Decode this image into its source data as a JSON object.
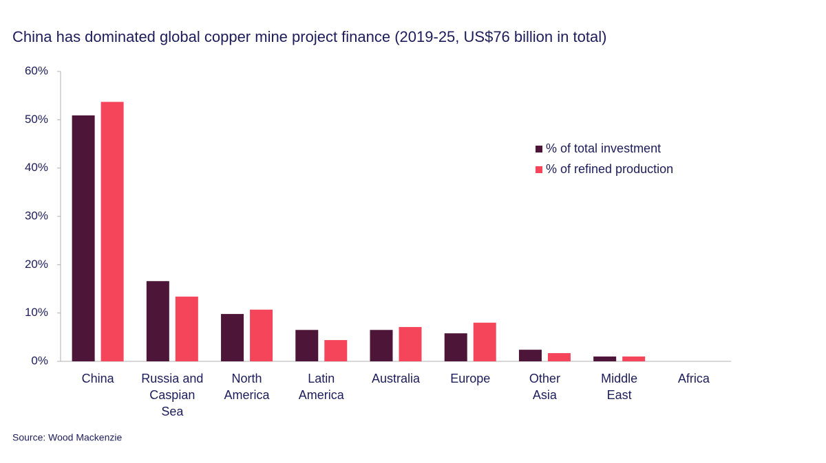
{
  "chart_data": {
    "type": "bar",
    "title": "China has dominated global copper mine project finance (2019-25, US$76 billion in total)",
    "source": "Source: Wood Mackenzie",
    "categories": [
      "China",
      "Russia and\nCaspian\nSea",
      "North\nAmerica",
      "Latin\nAmerica",
      "Australia",
      "Europe",
      "Other\nAsia",
      "Middle\nEast",
      "Africa"
    ],
    "series": [
      {
        "name": "% of total investment",
        "color": "#4d1638",
        "values": [
          50.9,
          16.6,
          9.8,
          6.5,
          6.5,
          5.8,
          2.4,
          1.0,
          0
        ]
      },
      {
        "name": "% of refined production",
        "color": "#f5455b",
        "values": [
          53.7,
          13.4,
          10.7,
          4.4,
          7.1,
          8.0,
          1.7,
          1.0,
          0
        ]
      }
    ],
    "ylim": [
      0,
      60
    ],
    "yticks": [
      {
        "value": 0,
        "label": "0%"
      },
      {
        "value": 10,
        "label": "10%"
      },
      {
        "value": 20,
        "label": "20%"
      },
      {
        "value": 30,
        "label": "30%"
      },
      {
        "value": 40,
        "label": "40%"
      },
      {
        "value": 50,
        "label": "50%"
      },
      {
        "value": 60,
        "label": "60%"
      }
    ],
    "grid": false,
    "legend": "upper-right"
  }
}
